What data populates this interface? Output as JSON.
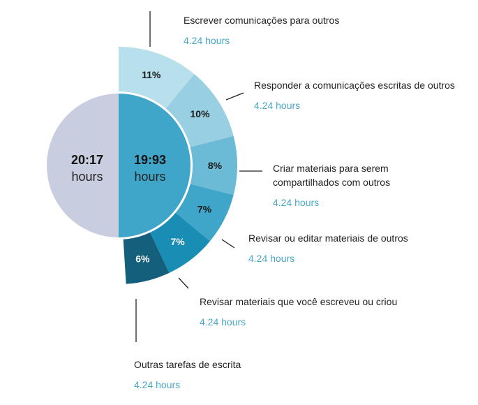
{
  "chart_data": {
    "type": "pie",
    "left_half": {
      "value": "20:17",
      "unit": "hours",
      "color": "#c8cddf"
    },
    "right_half": {
      "value": "19:93",
      "unit": "hours",
      "color": "#40a6c9"
    },
    "segments": [
      {
        "name": "Escrever comunicações para outros",
        "percent": 11,
        "percent_label": "11%",
        "hours": "4.24 hours",
        "color": "#b8dfec"
      },
      {
        "name": "Responder a comunicações escritas de outros",
        "percent": 10,
        "percent_label": "10%",
        "hours": "4.24 hours",
        "color": "#98cfe2"
      },
      {
        "name": "Criar materiais para serem compartilhados com outros",
        "percent": 8,
        "percent_label": "8%",
        "hours": "4.24 hours",
        "color": "#6cbbd6"
      },
      {
        "name": "Revisar ou editar materiais de outros",
        "percent": 7,
        "percent_label": "7%",
        "hours": "4.24 hours",
        "color": "#40a6c9"
      },
      {
        "name": "Revisar materiais que você escreveu ou criou",
        "percent": 7,
        "percent_label": "7%",
        "hours": "4.24 hours",
        "color": "#1a8db5"
      },
      {
        "name": "Outras tarefas de escrita",
        "percent": 6,
        "percent_label": "6%",
        "hours": "4.24 hours",
        "color": "#135f7c"
      }
    ]
  }
}
